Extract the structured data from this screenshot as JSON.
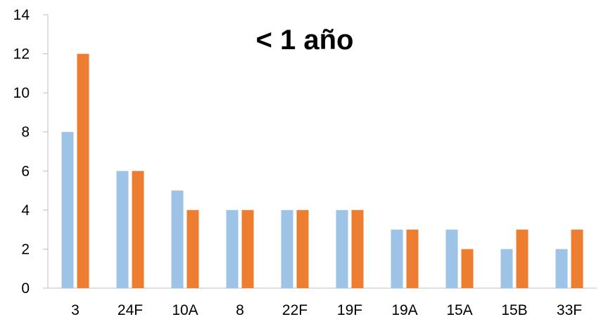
{
  "chart_data": {
    "type": "bar",
    "title": "< 1 año",
    "xlabel": "",
    "ylabel": "",
    "categories": [
      "3",
      "24F",
      "10A",
      "8",
      "22F",
      "19F",
      "19A",
      "15A",
      "15B",
      "33F"
    ],
    "series": [
      {
        "values": [
          8,
          6,
          5,
          4,
          4,
          4,
          3,
          3,
          2,
          2
        ],
        "color": "#9DC3E6"
      },
      {
        "values": [
          12,
          6,
          4,
          4,
          4,
          4,
          3,
          2,
          3,
          3
        ],
        "color": "#ED7D31"
      }
    ],
    "ylim": [
      0,
      14
    ],
    "yticks": [
      0,
      2,
      4,
      6,
      8,
      10,
      12,
      14
    ],
    "grid": false,
    "legend": "none"
  }
}
